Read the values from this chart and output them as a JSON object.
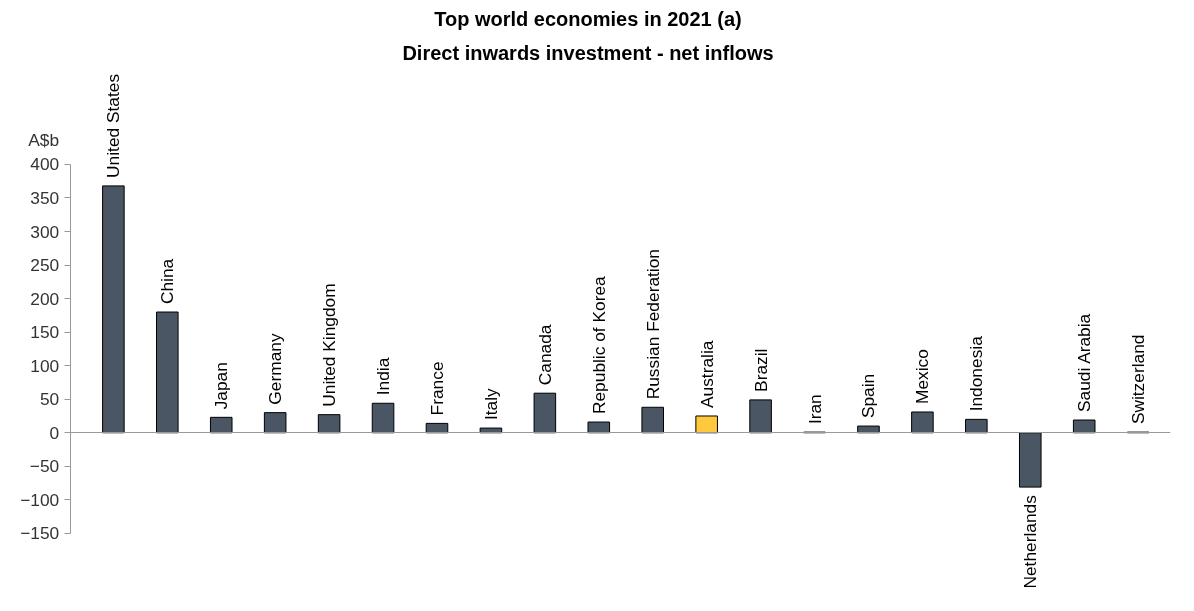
{
  "chart_data": {
    "type": "bar",
    "title": "Top world economies in 2021 (a)",
    "subtitle": "Direct inwards investment - net inflows",
    "ylabel": "A$b",
    "categories": [
      "United States",
      "China",
      "Japan",
      "Germany",
      "United Kingdom",
      "India",
      "France",
      "Italy",
      "Canada",
      "Republic of Korea",
      "Russian Federation",
      "Australia",
      "Brazil",
      "Iran",
      "Spain",
      "Mexico",
      "Indonesia",
      "Netherlands",
      "Saudi Arabia",
      "Switzerland"
    ],
    "values": [
      368,
      180,
      23,
      30,
      27,
      44,
      14,
      7,
      59,
      16,
      38,
      25,
      49,
      1,
      10,
      31,
      20,
      -81,
      19,
      1
    ],
    "colors": [
      "#4a5663",
      "#4a5663",
      "#4a5663",
      "#4a5663",
      "#4a5663",
      "#4a5663",
      "#4a5663",
      "#4a5663",
      "#4a5663",
      "#4a5663",
      "#4a5663",
      "#ffc83d",
      "#4a5663",
      "#4a5663",
      "#4a5663",
      "#4a5663",
      "#4a5663",
      "#4a5663",
      "#4a5663",
      "#4a5663"
    ],
    "ylim": [
      -150,
      400
    ],
    "yticks": [
      -150,
      -100,
      -50,
      0,
      50,
      100,
      150,
      200,
      250,
      300,
      350,
      400
    ],
    "grid": false
  }
}
